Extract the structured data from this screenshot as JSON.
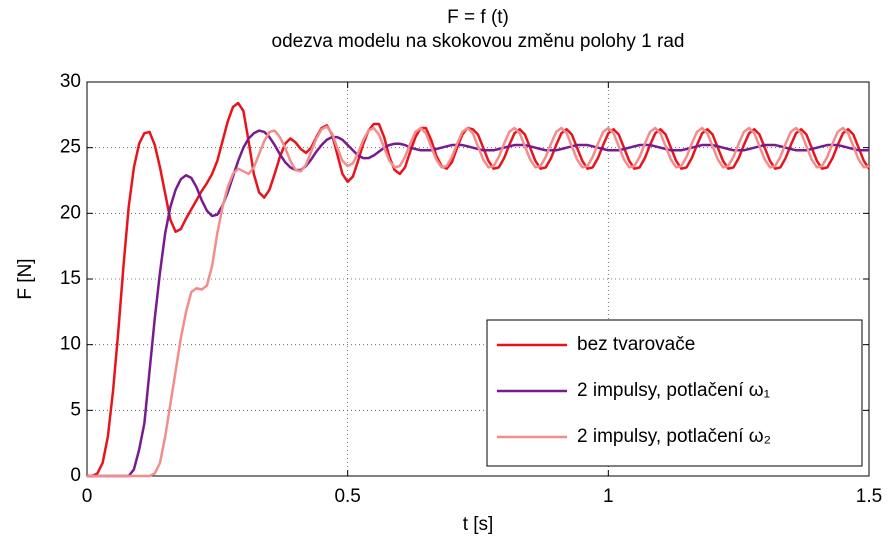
{
  "chart_data": {
    "type": "line",
    "title": "F = f (t)",
    "subtitle": "odezva modelu na skokovou změnu polohy 1 rad",
    "xlabel": "t [s]",
    "ylabel": "F [N]",
    "x": [
      0,
      0.01,
      0.02,
      0.03,
      0.04,
      0.05,
      0.06,
      0.07,
      0.08,
      0.09,
      0.1,
      0.11,
      0.12,
      0.13,
      0.14,
      0.15,
      0.16,
      0.17,
      0.18,
      0.19,
      0.2,
      0.21,
      0.22,
      0.23,
      0.24,
      0.25,
      0.26,
      0.27,
      0.28,
      0.29,
      0.3,
      0.31,
      0.32,
      0.33,
      0.34,
      0.35,
      0.36,
      0.37,
      0.38,
      0.39,
      0.4,
      0.41,
      0.42,
      0.43,
      0.44,
      0.45,
      0.46,
      0.47,
      0.48,
      0.49,
      0.5,
      0.51,
      0.52,
      0.53,
      0.54,
      0.55,
      0.56,
      0.57,
      0.58,
      0.59,
      0.6,
      0.61,
      0.62,
      0.63,
      0.64,
      0.65,
      0.66,
      0.67,
      0.68,
      0.69,
      0.7,
      0.71,
      0.72,
      0.73,
      0.74,
      0.75,
      0.76,
      0.77,
      0.78,
      0.79,
      0.8,
      0.81,
      0.82,
      0.83,
      0.84,
      0.85,
      0.86,
      0.87,
      0.88,
      0.89,
      0.9,
      0.91,
      0.92,
      0.93,
      0.94,
      0.95,
      0.96,
      0.97,
      0.98,
      0.99,
      1,
      1.01,
      1.02,
      1.03,
      1.04,
      1.05,
      1.06,
      1.07,
      1.08,
      1.09,
      1.1,
      1.11,
      1.12,
      1.13,
      1.14,
      1.15,
      1.16,
      1.17,
      1.18,
      1.19,
      1.2,
      1.21,
      1.22,
      1.23,
      1.24,
      1.25,
      1.26,
      1.27,
      1.28,
      1.29,
      1.3,
      1.31,
      1.32,
      1.33,
      1.34,
      1.35,
      1.36,
      1.37,
      1.38,
      1.39,
      1.4,
      1.41,
      1.42,
      1.43,
      1.44,
      1.45,
      1.46,
      1.47,
      1.48,
      1.49,
      1.5
    ],
    "series": [
      {
        "name": "bez tvarovače",
        "color": "#e8141b",
        "values": [
          0,
          0,
          0.2,
          1,
          3,
          6.5,
          11,
          16,
          20.5,
          23.5,
          25.3,
          26.1,
          26.2,
          25.2,
          23.5,
          21.5,
          19.5,
          18.6,
          18.8,
          19.6,
          20.3,
          21,
          21.7,
          22.3,
          23,
          24,
          25.5,
          27,
          28.1,
          28.4,
          27.8,
          25.5,
          23,
          21.6,
          21.2,
          21.8,
          23,
          24.3,
          25.3,
          25.7,
          25.4,
          24.9,
          24.6,
          25,
          25.8,
          26.5,
          26.7,
          26,
          24.5,
          23,
          22.4,
          22.8,
          24,
          25.3,
          26.3,
          26.8,
          26.8,
          25.8,
          24.3,
          23.3,
          23,
          23.5,
          24.7,
          25.8,
          26.5,
          26.5,
          25.6,
          24.4,
          23.6,
          23.4,
          23.9,
          25,
          26,
          26.5,
          26.4,
          26,
          25,
          24,
          23.4,
          23.5,
          24.2,
          25.2,
          26.1,
          26.4,
          26,
          25,
          24,
          23.4,
          23.5,
          24.2,
          25.2,
          26.1,
          26.4,
          26,
          25,
          24,
          23.4,
          23.5,
          24.2,
          25.2,
          26.1,
          26.4,
          26,
          25,
          24,
          23.4,
          23.5,
          24.2,
          25.2,
          26.1,
          26.4,
          26,
          25,
          24,
          23.4,
          23.5,
          24.2,
          25.2,
          26.1,
          26.4,
          26,
          25,
          24,
          23.4,
          23.5,
          24.2,
          25.2,
          26.1,
          26.4,
          26,
          25,
          24,
          23.4,
          23.5,
          24.2,
          25.2,
          26.1,
          26.4,
          26,
          25,
          24,
          23.4,
          23.5,
          24.2,
          25.2,
          26.1,
          26.4,
          26,
          25,
          24,
          23.4
        ]
      },
      {
        "name": "2 impulsy, potlačení ω₁",
        "color": "#7a1a8f",
        "values": [
          0,
          0,
          0,
          0,
          0,
          0,
          0,
          0,
          0,
          0.5,
          2,
          4,
          8,
          12,
          15.5,
          18.5,
          20.5,
          21.8,
          22.6,
          22.9,
          22.7,
          22,
          21,
          20.2,
          19.8,
          19.9,
          20.6,
          21.6,
          22.8,
          24,
          25,
          25.7,
          26.1,
          26.3,
          26.2,
          25.8,
          25.2,
          24.5,
          23.9,
          23.5,
          23.3,
          23.3,
          23.6,
          24.1,
          24.7,
          25.2,
          25.6,
          25.8,
          25.8,
          25.6,
          25.2,
          24.8,
          24.4,
          24.2,
          24.2,
          24.4,
          24.7,
          25,
          25.2,
          25.3,
          25.3,
          25.2,
          25,
          24.9,
          24.8,
          24.8,
          24.8,
          24.9,
          25,
          25.1,
          25.2,
          25.2,
          25.2,
          25.1,
          25,
          24.9,
          24.8,
          24.8,
          24.8,
          24.9,
          25,
          25.1,
          25.2,
          25.2,
          25.2,
          25.1,
          25,
          24.9,
          24.8,
          24.8,
          24.8,
          24.9,
          25,
          25.1,
          25.2,
          25.2,
          25.2,
          25.1,
          25,
          24.9,
          24.8,
          24.8,
          24.8,
          24.9,
          25,
          25.1,
          25.2,
          25.2,
          25.2,
          25.1,
          25,
          24.9,
          24.8,
          24.8,
          24.8,
          24.9,
          25,
          25.1,
          25.2,
          25.2,
          25.2,
          25.1,
          25,
          24.9,
          24.8,
          24.8,
          24.8,
          24.9,
          25,
          25.1,
          25.2,
          25.2,
          25.2,
          25.1,
          25,
          24.9,
          24.8,
          24.8,
          24.8,
          24.9,
          25,
          25.1,
          25.2,
          25.2,
          25.2,
          25.1,
          25,
          24.9,
          24.8,
          24.8,
          24.8
        ]
      },
      {
        "name": "2 impulsy, potlačení ω₂",
        "color": "#f48c8c",
        "values": [
          0,
          0,
          0,
          0,
          0,
          0,
          0,
          0,
          0,
          0,
          0,
          0,
          0,
          0.2,
          1,
          3,
          5.5,
          8,
          10.5,
          12.5,
          14,
          14.3,
          14.2,
          14.5,
          16,
          18.5,
          20.5,
          22,
          23,
          23.4,
          23.2,
          23,
          23.5,
          24.5,
          25.5,
          26.2,
          26.3,
          25.8,
          25,
          24,
          23.3,
          23.2,
          23.7,
          24.7,
          25.7,
          26.4,
          26.6,
          26.1,
          25,
          24,
          23.6,
          23.8,
          24.6,
          25.6,
          26.3,
          26.5,
          26,
          25,
          24,
          23.5,
          23.6,
          24.3,
          25.3,
          26.2,
          26.5,
          26.1,
          25.1,
          24.1,
          23.5,
          23.6,
          24.3,
          25.3,
          26.2,
          26.5,
          26.1,
          25.1,
          24.1,
          23.5,
          23.6,
          24.3,
          25.3,
          26.2,
          26.5,
          26.1,
          25.1,
          24.1,
          23.5,
          23.6,
          24.3,
          25.3,
          26.2,
          26.5,
          26.1,
          25.1,
          24.1,
          23.5,
          23.6,
          24.3,
          25.3,
          26.2,
          26.5,
          26.1,
          25.1,
          24.1,
          23.5,
          23.6,
          24.3,
          25.3,
          26.2,
          26.5,
          26.1,
          25.1,
          24.1,
          23.5,
          23.6,
          24.3,
          25.3,
          26.2,
          26.5,
          26.1,
          25.1,
          24.1,
          23.5,
          23.6,
          24.3,
          25.3,
          26.2,
          26.5,
          26.1,
          25.1,
          24.1,
          23.5,
          23.6,
          24.3,
          25.3,
          26.2,
          26.5,
          26.1,
          25.1,
          24.1,
          23.5,
          23.6,
          24.3,
          25.3,
          26.2,
          26.5,
          26.1,
          25.1,
          24.1,
          23.5,
          23.6
        ]
      }
    ],
    "xlim": [
      0,
      1.5
    ],
    "xticks": [
      0,
      0.5,
      1,
      1.5
    ],
    "ylim": [
      0,
      30
    ],
    "yticks": [
      0,
      5,
      10,
      15,
      20,
      25,
      30
    ],
    "grid": true,
    "legend": "lower right"
  }
}
